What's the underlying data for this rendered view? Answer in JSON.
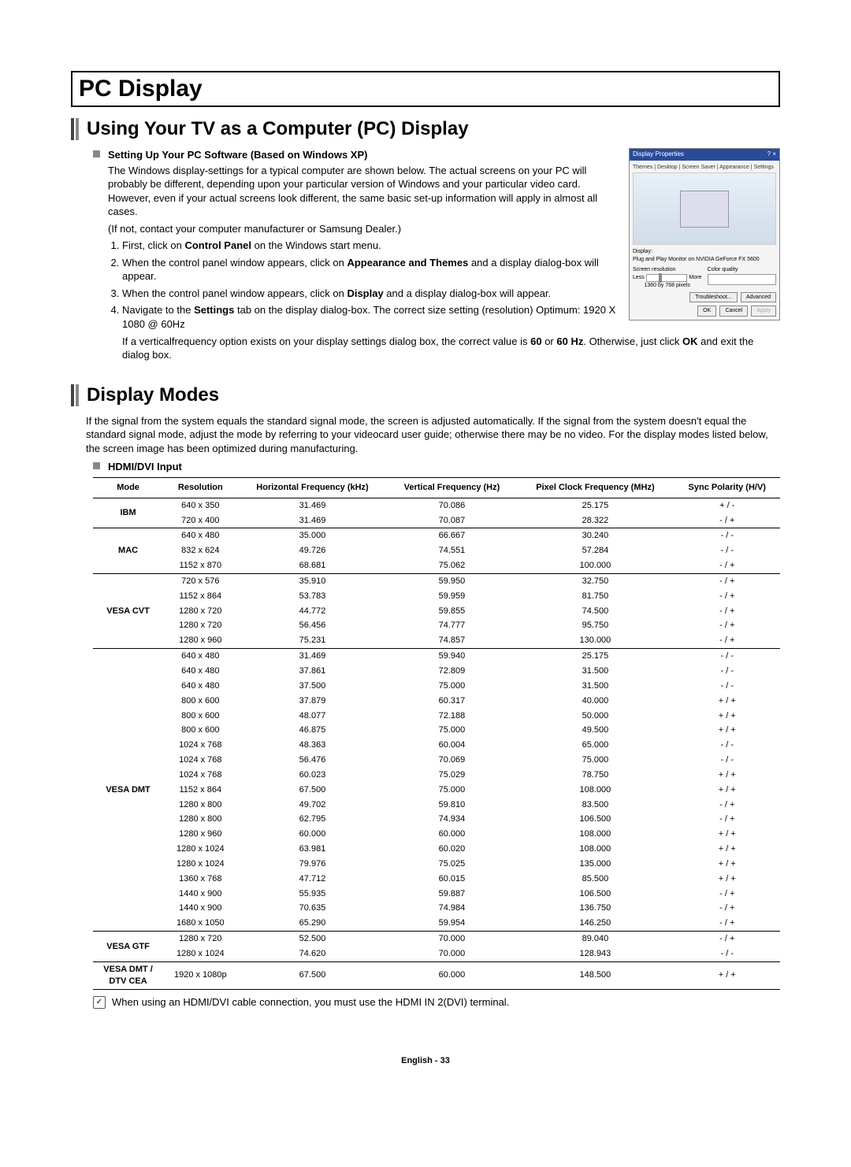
{
  "page_title": "PC Display",
  "section1": {
    "heading": "Using Your TV as a Computer (PC) Display",
    "sub_heading": "Setting Up Your PC Software (Based on Windows XP)",
    "paragraph": "The Windows display-settings for a typical computer are shown below. The actual screens on your PC will probably be different, depending upon your particular version of Windows and your particular video card. However, even if your actual screens look different, the same basic set-up information will apply in almost all cases.",
    "paragraph2": "(If not, contact your computer manufacturer or Samsung Dealer.)",
    "steps": [
      {
        "pre": "First, click on ",
        "b": "Control Panel",
        "post": " on the Windows start menu."
      },
      {
        "pre": "When the control panel window appears, click on ",
        "b": "Appearance and Themes",
        "post": " and a display dialog-box will appear."
      },
      {
        "pre": "When the control panel window appears, click on ",
        "b": "Display",
        "post": " and a display dialog-box will appear."
      },
      {
        "pre": "Navigate to the ",
        "b": "Settings",
        "post": " tab on the display dialog-box. The correct size setting (resolution) Optimum: 1920 X 1080 @ 60Hz"
      }
    ],
    "tail_pre": "If a verticalfrequency option exists on your display settings dialog box, the correct value is ",
    "tail_b1": "60",
    "tail_mid": " or ",
    "tail_b2": "60 Hz",
    "tail_post": ". Otherwise, just click ",
    "tail_b3": "OK",
    "tail_end": " and exit the dialog box.",
    "dialog": {
      "title": "Display Properties",
      "tabs": "Themes | Desktop | Screen Saver | Appearance | Settings",
      "display_label": "Display:",
      "display_value": "Plug and Play Monitor on NVIDIA GeForce FX 5600",
      "res_label": "Screen resolution",
      "res_less": "Less",
      "res_more": "More",
      "res_text": "1360 by 768 pixels",
      "quality_label": "Color quality",
      "quality_value": "Highest (32 bit)",
      "btn_trouble": "Troubleshoot...",
      "btn_adv": "Advanced",
      "btn_ok": "OK",
      "btn_cancel": "Cancel",
      "btn_apply": "Apply"
    }
  },
  "section2": {
    "heading": "Display Modes",
    "intro": "If the signal from the system equals the standard signal mode, the screen is adjusted automatically. If the signal from the system doesn't equal the standard signal mode, adjust the mode by referring to your videocard user guide; otherwise there may be no video. For the display modes listed below, the screen image has been optimized during manufacturing.",
    "sub_heading": "HDMI/DVI Input",
    "columns": [
      "Mode",
      "Resolution",
      "Horizontal Frequency (kHz)",
      "Vertical Frequency (Hz)",
      "Pixel Clock Frequency (MHz)",
      "Sync Polarity (H/V)"
    ],
    "groups": [
      {
        "label": "IBM",
        "rows": [
          [
            "640 x 350",
            "31.469",
            "70.086",
            "25.175",
            "+ / -"
          ],
          [
            "720 x 400",
            "31.469",
            "70.087",
            "28.322",
            "- / +"
          ]
        ]
      },
      {
        "label": "MAC",
        "rows": [
          [
            "640 x 480",
            "35.000",
            "66.667",
            "30.240",
            "- / -"
          ],
          [
            "832 x 624",
            "49.726",
            "74.551",
            "57.284",
            "- / -"
          ],
          [
            "1152 x 870",
            "68.681",
            "75.062",
            "100.000",
            "- / +"
          ]
        ]
      },
      {
        "label": "VESA CVT",
        "rows": [
          [
            "720 x 576",
            "35.910",
            "59.950",
            "32.750",
            "- / +"
          ],
          [
            "1152 x 864",
            "53.783",
            "59.959",
            "81.750",
            "- / +"
          ],
          [
            "1280 x 720",
            "44.772",
            "59.855",
            "74.500",
            "- / +"
          ],
          [
            "1280 x 720",
            "56.456",
            "74.777",
            "95.750",
            "- / +"
          ],
          [
            "1280 x 960",
            "75.231",
            "74.857",
            "130.000",
            "- / +"
          ]
        ]
      },
      {
        "label": "VESA DMT",
        "rows": [
          [
            "640 x 480",
            "31.469",
            "59.940",
            "25.175",
            "- / -"
          ],
          [
            "640 x 480",
            "37.861",
            "72.809",
            "31.500",
            "- / -"
          ],
          [
            "640 x 480",
            "37.500",
            "75.000",
            "31.500",
            "- / -"
          ],
          [
            "800 x 600",
            "37.879",
            "60.317",
            "40.000",
            "+ / +"
          ],
          [
            "800 x 600",
            "48.077",
            "72.188",
            "50.000",
            "+ / +"
          ],
          [
            "800 x 600",
            "46.875",
            "75.000",
            "49.500",
            "+ / +"
          ],
          [
            "1024 x 768",
            "48.363",
            "60.004",
            "65.000",
            "- / -"
          ],
          [
            "1024 x 768",
            "56.476",
            "70.069",
            "75.000",
            "- / -"
          ],
          [
            "1024 x 768",
            "60.023",
            "75.029",
            "78.750",
            "+ / +"
          ],
          [
            "1152 x 864",
            "67.500",
            "75.000",
            "108.000",
            "+ / +"
          ],
          [
            "1280 x 800",
            "49.702",
            "59.810",
            "83.500",
            "- / +"
          ],
          [
            "1280 x 800",
            "62.795",
            "74.934",
            "106.500",
            "- / +"
          ],
          [
            "1280 x 960",
            "60.000",
            "60.000",
            "108.000",
            "+ / +"
          ],
          [
            "1280 x 1024",
            "63.981",
            "60.020",
            "108.000",
            "+ / +"
          ],
          [
            "1280 x 1024",
            "79.976",
            "75.025",
            "135.000",
            "+ / +"
          ],
          [
            "1360 x 768",
            "47.712",
            "60.015",
            "85.500",
            "+ / +"
          ],
          [
            "1440 x 900",
            "55.935",
            "59.887",
            "106.500",
            "- / +"
          ],
          [
            "1440 x 900",
            "70.635",
            "74.984",
            "136.750",
            "- / +"
          ],
          [
            "1680 x 1050",
            "65.290",
            "59.954",
            "146.250",
            "- / +"
          ]
        ]
      },
      {
        "label": "VESA GTF",
        "rows": [
          [
            "1280 x 720",
            "52.500",
            "70.000",
            "89.040",
            "- / +"
          ],
          [
            "1280 x 1024",
            "74.620",
            "70.000",
            "128.943",
            "- / -"
          ]
        ]
      },
      {
        "label": "VESA DMT /\nDTV CEA",
        "rows": [
          [
            "1920 x 1080p",
            "67.500",
            "60.000",
            "148.500",
            "+ / +"
          ]
        ]
      }
    ],
    "note": "When using an HDMI/DVI cable connection, you must use the HDMI IN 2(DVI) terminal."
  },
  "footer": "English - 33"
}
